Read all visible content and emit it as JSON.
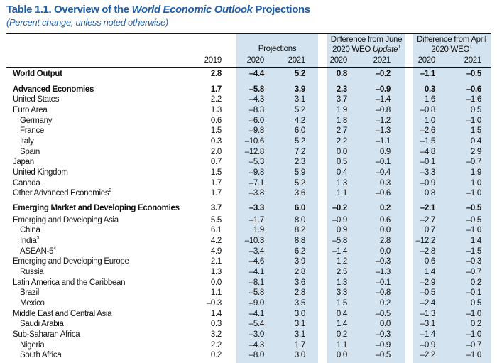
{
  "title": {
    "prefix": "Table 1.1. Overview of the ",
    "italic": "World Economic Outlook",
    "suffix": " Projections"
  },
  "subtitle": "(Percent change, unless noted otherwise)",
  "colors": {
    "title": "#1f5ea8",
    "shade": "#d3e3ef"
  },
  "headers": {
    "projections": "Projections",
    "june_line1": "Difference from June",
    "june_line2a": "2020 WEO ",
    "june_line2b": "Update",
    "june_sup": "1",
    "april_line1": "Difference from April",
    "april_line2": "2020 WEO",
    "april_sup": "1",
    "years": [
      "2019",
      "2020",
      "2021",
      "2020",
      "2021",
      "2020",
      "2021"
    ]
  },
  "rows": [
    {
      "name": "World Output",
      "sup": "",
      "level": 0,
      "bold": true,
      "values": [
        "2.8",
        "–4.4",
        "5.2",
        "0.8",
        "–0.2",
        "–1.1",
        "–0.5"
      ]
    },
    {
      "name": "Advanced Economies",
      "sup": "",
      "level": 1,
      "bold": true,
      "values": [
        "1.7",
        "–5.8",
        "3.9",
        "2.3",
        "–0.9",
        "0.3",
        "–0.6"
      ]
    },
    {
      "name": "United States",
      "sup": "",
      "level": 1,
      "bold": false,
      "values": [
        "2.2",
        "–4.3",
        "3.1",
        "3.7",
        "–1.4",
        "1.6",
        "–1.6"
      ]
    },
    {
      "name": "Euro Area",
      "sup": "",
      "level": 1,
      "bold": false,
      "values": [
        "1.3",
        "–8.3",
        "5.2",
        "1.9",
        "–0.8",
        "–0.8",
        "0.5"
      ]
    },
    {
      "name": "Germany",
      "sup": "",
      "level": 2,
      "bold": false,
      "values": [
        "0.6",
        "–6.0",
        "4.2",
        "1.8",
        "–1.2",
        "1.0",
        "–1.0"
      ]
    },
    {
      "name": "France",
      "sup": "",
      "level": 2,
      "bold": false,
      "values": [
        "1.5",
        "–9.8",
        "6.0",
        "2.7",
        "–1.3",
        "–2.6",
        "1.5"
      ]
    },
    {
      "name": "Italy",
      "sup": "",
      "level": 2,
      "bold": false,
      "values": [
        "0.3",
        "–10.6",
        "5.2",
        "2.2",
        "–1.1",
        "–1.5",
        "0.4"
      ]
    },
    {
      "name": "Spain",
      "sup": "",
      "level": 2,
      "bold": false,
      "values": [
        "2.0",
        "–12.8",
        "7.2",
        "0.0",
        "0.9",
        "–4.8",
        "2.9"
      ]
    },
    {
      "name": "Japan",
      "sup": "",
      "level": 1,
      "bold": false,
      "values": [
        "0.7",
        "–5.3",
        "2.3",
        "0.5",
        "–0.1",
        "–0.1",
        "–0.7"
      ]
    },
    {
      "name": "United Kingdom",
      "sup": "",
      "level": 1,
      "bold": false,
      "values": [
        "1.5",
        "–9.8",
        "5.9",
        "0.4",
        "–0.4",
        "–3.3",
        "1.9"
      ]
    },
    {
      "name": "Canada",
      "sup": "",
      "level": 1,
      "bold": false,
      "values": [
        "1.7",
        "–7.1",
        "5.2",
        "1.3",
        "0.3",
        "–0.9",
        "1.0"
      ]
    },
    {
      "name": "Other Advanced Economies",
      "sup": "2",
      "level": 1,
      "bold": false,
      "values": [
        "1.7",
        "–3.8",
        "3.6",
        "1.1",
        "–0.6",
        "0.8",
        "–1.0"
      ]
    },
    {
      "name": "Emerging Market and Developing Economies",
      "sup": "",
      "level": 1,
      "bold": true,
      "values": [
        "3.7",
        "–3.3",
        "6.0",
        "–0.2",
        "0.2",
        "–2.1",
        "–0.5"
      ]
    },
    {
      "name": "Emerging and Developing Asia",
      "sup": "",
      "level": 1,
      "bold": false,
      "values": [
        "5.5",
        "–1.7",
        "8.0",
        "–0.9",
        "0.6",
        "–2.7",
        "–0.5"
      ]
    },
    {
      "name": "China",
      "sup": "",
      "level": 2,
      "bold": false,
      "values": [
        "6.1",
        "1.9",
        "8.2",
        "0.9",
        "0.0",
        "0.7",
        "–1.0"
      ]
    },
    {
      "name": "India",
      "sup": "3",
      "level": 2,
      "bold": false,
      "values": [
        "4.2",
        "–10.3",
        "8.8",
        "–5.8",
        "2.8",
        "–12.2",
        "1.4"
      ]
    },
    {
      "name": "ASEAN-5",
      "sup": "4",
      "level": 2,
      "bold": false,
      "values": [
        "4.9",
        "–3.4",
        "6.2",
        "–1.4",
        "0.0",
        "–2.8",
        "–1.5"
      ]
    },
    {
      "name": "Emerging and Developing Europe",
      "sup": "",
      "level": 1,
      "bold": false,
      "values": [
        "2.1",
        "–4.6",
        "3.9",
        "1.2",
        "–0.3",
        "0.6",
        "–0.3"
      ]
    },
    {
      "name": "Russia",
      "sup": "",
      "level": 2,
      "bold": false,
      "values": [
        "1.3",
        "–4.1",
        "2.8",
        "2.5",
        "–1.3",
        "1.4",
        "–0.7"
      ]
    },
    {
      "name": "Latin America and the Caribbean",
      "sup": "",
      "level": 1,
      "bold": false,
      "values": [
        "0.0",
        "–8.1",
        "3.6",
        "1.3",
        "–0.1",
        "–2.9",
        "0.2"
      ]
    },
    {
      "name": "Brazil",
      "sup": "",
      "level": 2,
      "bold": false,
      "values": [
        "1.1",
        "–5.8",
        "2.8",
        "3.3",
        "–0.8",
        "–0.5",
        "–0.1"
      ]
    },
    {
      "name": "Mexico",
      "sup": "",
      "level": 2,
      "bold": false,
      "values": [
        "–0.3",
        "–9.0",
        "3.5",
        "1.5",
        "0.2",
        "–2.4",
        "0.5"
      ]
    },
    {
      "name": "Middle East and Central Asia",
      "sup": "",
      "level": 1,
      "bold": false,
      "values": [
        "1.4",
        "–4.1",
        "3.0",
        "0.4",
        "–0.5",
        "–1.3",
        "–1.0"
      ]
    },
    {
      "name": "Saudi Arabia",
      "sup": "",
      "level": 2,
      "bold": false,
      "values": [
        "0.3",
        "–5.4",
        "3.1",
        "1.4",
        "0.0",
        "–3.1",
        "0.2"
      ]
    },
    {
      "name": "Sub-Saharan Africa",
      "sup": "",
      "level": 1,
      "bold": false,
      "values": [
        "3.2",
        "–3.0",
        "3.1",
        "0.2",
        "–0.3",
        "–1.4",
        "–1.0"
      ]
    },
    {
      "name": "Nigeria",
      "sup": "",
      "level": 2,
      "bold": false,
      "values": [
        "2.2",
        "–4.3",
        "1.7",
        "1.1",
        "–0.9",
        "–0.9",
        "–0.7"
      ]
    },
    {
      "name": "South Africa",
      "sup": "",
      "level": 2,
      "bold": false,
      "values": [
        "0.2",
        "–8.0",
        "3.0",
        "0.0",
        "–0.5",
        "–2.2",
        "–1.0"
      ]
    }
  ]
}
